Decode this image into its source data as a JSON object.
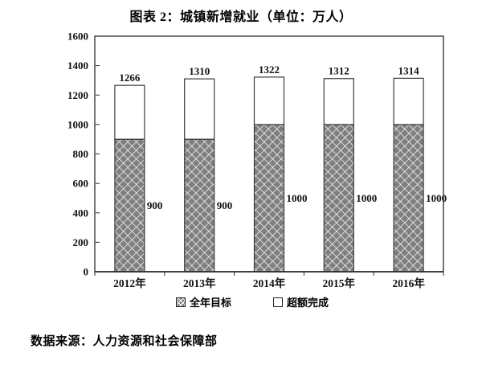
{
  "title": "图表 2：城镇新增就业（单位：万人）",
  "source": "数据来源：人力资源和社会保障部",
  "chart_data": {
    "type": "bar",
    "stacked": true,
    "title": "图表 2：城镇新增就业（单位：万人）",
    "categories": [
      "2012年",
      "2013年",
      "2014年",
      "2015年",
      "2016年"
    ],
    "series": [
      {
        "name": "全年目标",
        "style": "hatch",
        "values": [
          900,
          900,
          1000,
          1000,
          1000
        ]
      },
      {
        "name": "超额完成",
        "style": "white",
        "values": [
          366,
          410,
          322,
          312,
          314
        ]
      }
    ],
    "totals": [
      1266,
      1310,
      1322,
      1312,
      1314
    ],
    "ylim": [
      0,
      1600
    ],
    "yticks": [
      0,
      200,
      400,
      600,
      800,
      1000,
      1200,
      1400,
      1600
    ],
    "grid": false,
    "legend_position": "bottom",
    "colors": {
      "hatch_fill": "#7f7f7f",
      "hatch_line": "#ffffff",
      "bar_border": "#3c3c3c",
      "white_fill": "#ffffff",
      "axis": "#2b2b2b",
      "text": "#111111"
    }
  }
}
